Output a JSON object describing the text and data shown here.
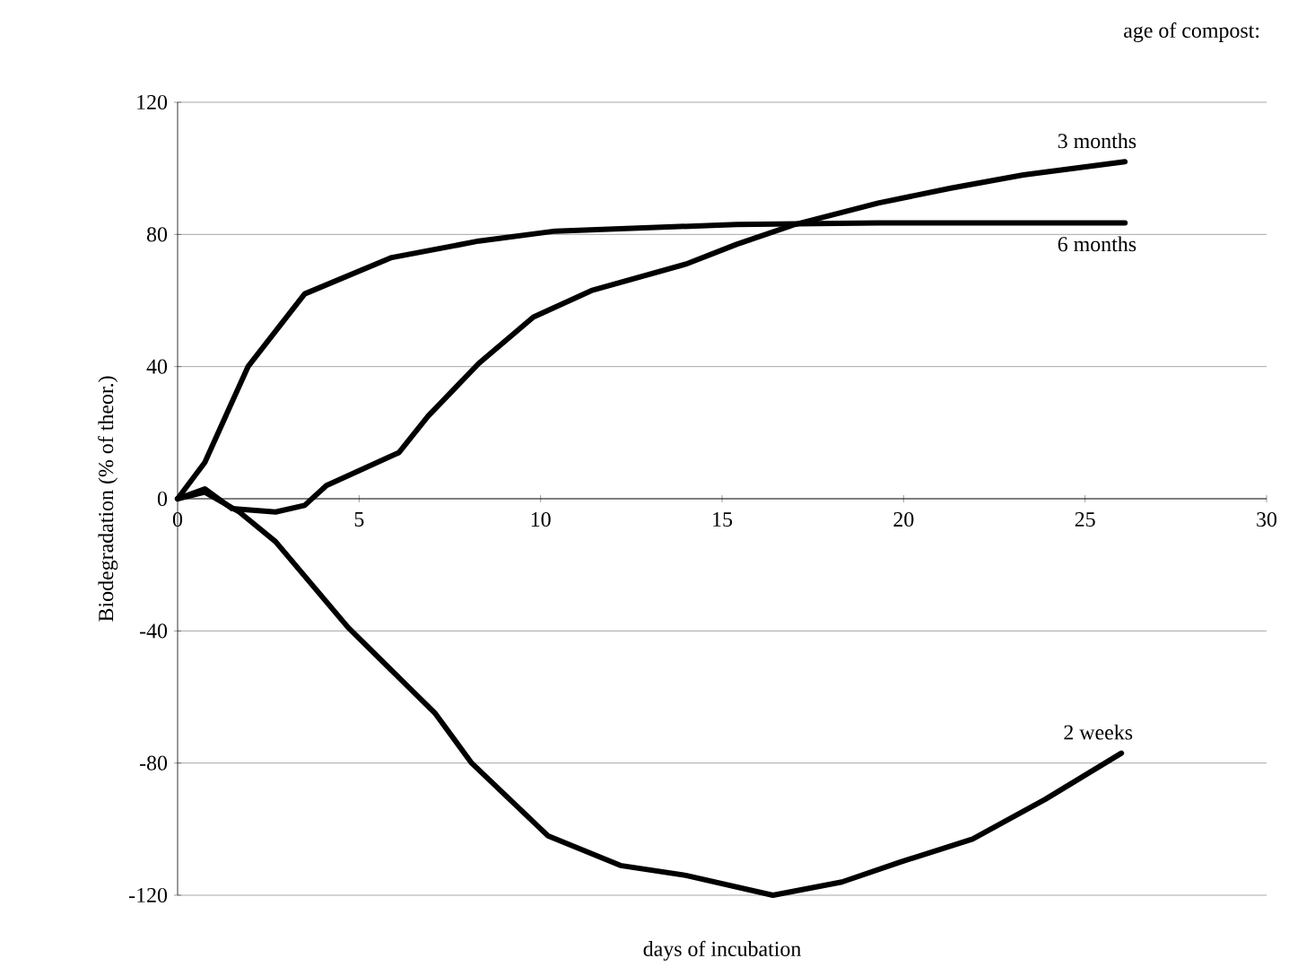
{
  "chart_data": {
    "type": "line",
    "xlabel": "days of incubation",
    "ylabel": "Biodegradation (% of theor.)",
    "legend_title": "age of compost:",
    "xlim": [
      0,
      30
    ],
    "xticks": [
      0,
      5,
      10,
      15,
      20,
      25,
      30
    ],
    "ylim": [
      -120,
      120
    ],
    "yticks": [
      -120,
      -80,
      -40,
      0,
      40,
      80,
      120
    ],
    "grid": "y",
    "legend": false,
    "marker": "none",
    "line_style": "solid",
    "series": [
      {
        "name": "3 months",
        "color": "#000000",
        "x": [
          0,
          0.75,
          1.5,
          2.7,
          3.5,
          4.1,
          6.1,
          6.9,
          8.3,
          9.8,
          11.4,
          14,
          15.4,
          17,
          19.3,
          21.3,
          23.3,
          26.1
        ],
        "values": [
          0,
          3,
          -3,
          -4,
          -2,
          4,
          14,
          25,
          41,
          55,
          63,
          71,
          77,
          83,
          89.5,
          94,
          98,
          102
        ]
      },
      {
        "name": "6 months",
        "color": "#000000",
        "x": [
          0,
          0.75,
          1.94,
          3.5,
          5.9,
          8.3,
          10.4,
          15.4,
          19.3,
          26.1
        ],
        "values": [
          0,
          11,
          40,
          62,
          73,
          78,
          81,
          83,
          83.5,
          83.5
        ]
      },
      {
        "name": "2 weeks",
        "color": "#000000",
        "x": [
          0,
          0.75,
          1.7,
          2.7,
          4.7,
          7.1,
          8.1,
          10.2,
          12.2,
          14,
          16.4,
          18.3,
          19.9,
          21.9,
          23.9,
          26
        ],
        "values": [
          0,
          2,
          -4,
          -13,
          -39,
          -65,
          -80,
          -102,
          -111,
          -114,
          -120,
          -116,
          -110,
          -103,
          -91,
          -77
        ]
      }
    ]
  }
}
